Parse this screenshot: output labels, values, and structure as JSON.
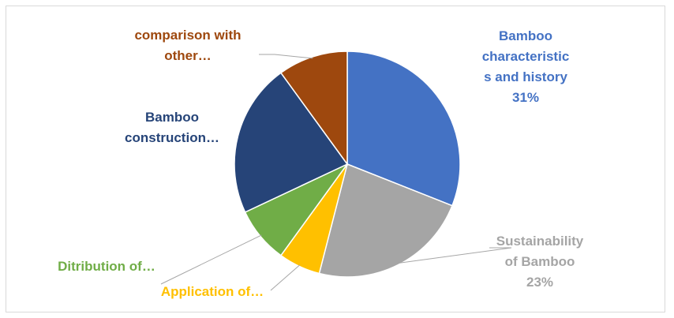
{
  "chart_data": {
    "type": "pie",
    "title": "",
    "slices": [
      {
        "label_lines": [
          "Bamboo",
          "characteristic",
          "s and history",
          "31%"
        ],
        "value": 31,
        "color": "#4472C4"
      },
      {
        "label_lines": [
          "Sustainability",
          "of Bamboo",
          "23%"
        ],
        "value": 23,
        "color": "#A5A5A5"
      },
      {
        "label_lines": [
          "Application of…"
        ],
        "value": 6,
        "color": "#FFC000"
      },
      {
        "label_lines": [
          "Ditribution of…"
        ],
        "value": 8,
        "color": "#70AD47"
      },
      {
        "label_lines": [
          "Bamboo",
          "construction…"
        ],
        "value": 22,
        "color": "#264478"
      },
      {
        "label_lines": [
          "comparison with",
          "other…"
        ],
        "value": 10,
        "color": "#9E480E"
      }
    ],
    "legend": "none",
    "label_colors": [
      "#4472C4",
      "#A5A5A5",
      "#FFC000",
      "#70AD47",
      "#264478",
      "#9E480E"
    ]
  }
}
